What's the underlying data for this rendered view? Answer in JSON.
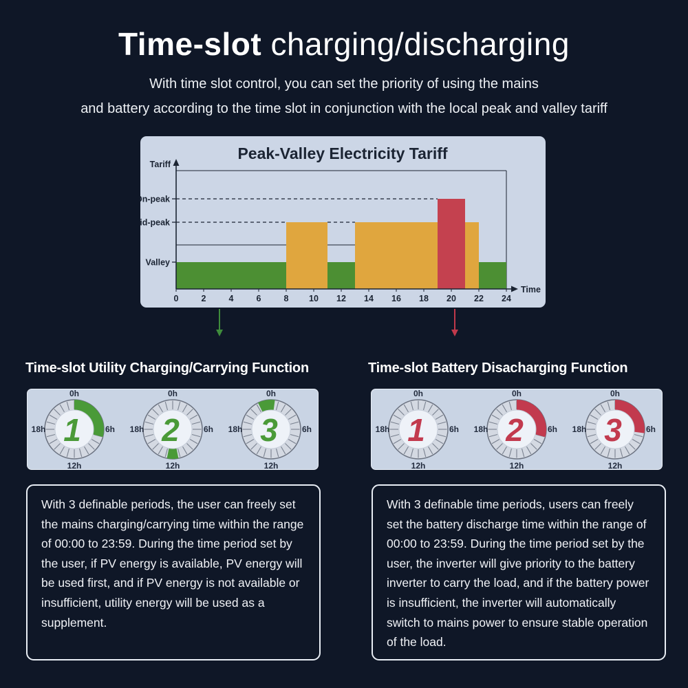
{
  "page": {
    "background": "#0f1727"
  },
  "header": {
    "title_bold": "Time-slot",
    "title_rest": " charging/discharging",
    "subtitle_line1": "With time slot control, you can set the priority of using the mains",
    "subtitle_line2": "and battery according to the time slot in conjunction with the local peak and valley tariff"
  },
  "chart_data": {
    "type": "bar",
    "title": "Peak-Valley Electricity Tariff",
    "xlabel": "Time",
    "ylabel": "Tariff",
    "x_ticks": [
      0,
      2,
      4,
      6,
      8,
      10,
      12,
      14,
      16,
      18,
      20,
      22,
      24
    ],
    "x_range": [
      0,
      24
    ],
    "y_level_labels": [
      "On-peak",
      "Mid-peak",
      "Valley"
    ],
    "segments": [
      {
        "from": 0,
        "to": 8,
        "level": "Valley"
      },
      {
        "from": 8,
        "to": 11,
        "level": "Mid-peak"
      },
      {
        "from": 11,
        "to": 13,
        "level": "Valley"
      },
      {
        "from": 13,
        "to": 22,
        "level": "Mid-peak"
      },
      {
        "from": 19,
        "to": 21,
        "level": "On-peak"
      },
      {
        "from": 22,
        "to": 24,
        "level": "Valley"
      }
    ],
    "dashed_guides": [
      {
        "level": "On-peak",
        "from": 0,
        "to": 19
      },
      {
        "level": "Mid-peak",
        "from": 0,
        "to": 8
      },
      {
        "level": "Mid-peak",
        "from": 11,
        "to": 13
      }
    ],
    "solid_guides": [
      {
        "level": "Frame-top",
        "from": 0,
        "to": 24
      },
      {
        "level": "Sub-mid",
        "from": 0,
        "to": 13
      }
    ],
    "colors": {
      "Valley": "#4c8f33",
      "Mid-peak": "#e0a63e",
      "On-peak": "#c4414f"
    },
    "panel_background": "#ccd6e6",
    "line_color": "#1b2433"
  },
  "clock_labels": {
    "top": "0h",
    "right": "6h",
    "bottom": "12h",
    "left": "18h"
  },
  "sections": {
    "left": {
      "heading": "Time-slot Utility Charging/Carrying Function",
      "accent": "#4a9a38",
      "arrow_color": "#3f8c3c",
      "clocks": [
        {
          "number": "1",
          "arc_start_h": 0,
          "arc_end_h": 7
        },
        {
          "number": "2",
          "arc_start_h": 11.25,
          "arc_end_h": 12.75
        },
        {
          "number": "3",
          "arc_start_h": 22.25,
          "arc_end_h": 0.5
        }
      ],
      "description": "With 3 definable periods, the user can freely set the mains charging/carrying time within the range of 00:00 to 23:59. During the time period set by the user, if PV energy is available, PV energy will be used first, and if PV energy is not available or insufficient, utility energy will be used as a supplement."
    },
    "right": {
      "heading": "Time-slot Battery Disacharging Function",
      "accent": "#c23a4e",
      "arrow_color": "#c0394b",
      "clocks": [
        {
          "number": "1",
          "arc_start_h": null,
          "arc_end_h": null
        },
        {
          "number": "2",
          "arc_start_h": 0,
          "arc_end_h": 7
        },
        {
          "number": "3",
          "arc_start_h": 0,
          "arc_end_h": 6.5
        }
      ],
      "description": "With 3 definable time periods, users can freely set the battery discharge time within the range of 00:00 to 23:59. During the time period set by the user, the inverter will give priority to the battery inverter to carry the load, and if the battery power is insufficient, the inverter will automatically switch to mains power to ensure stable operation of the load."
    }
  }
}
